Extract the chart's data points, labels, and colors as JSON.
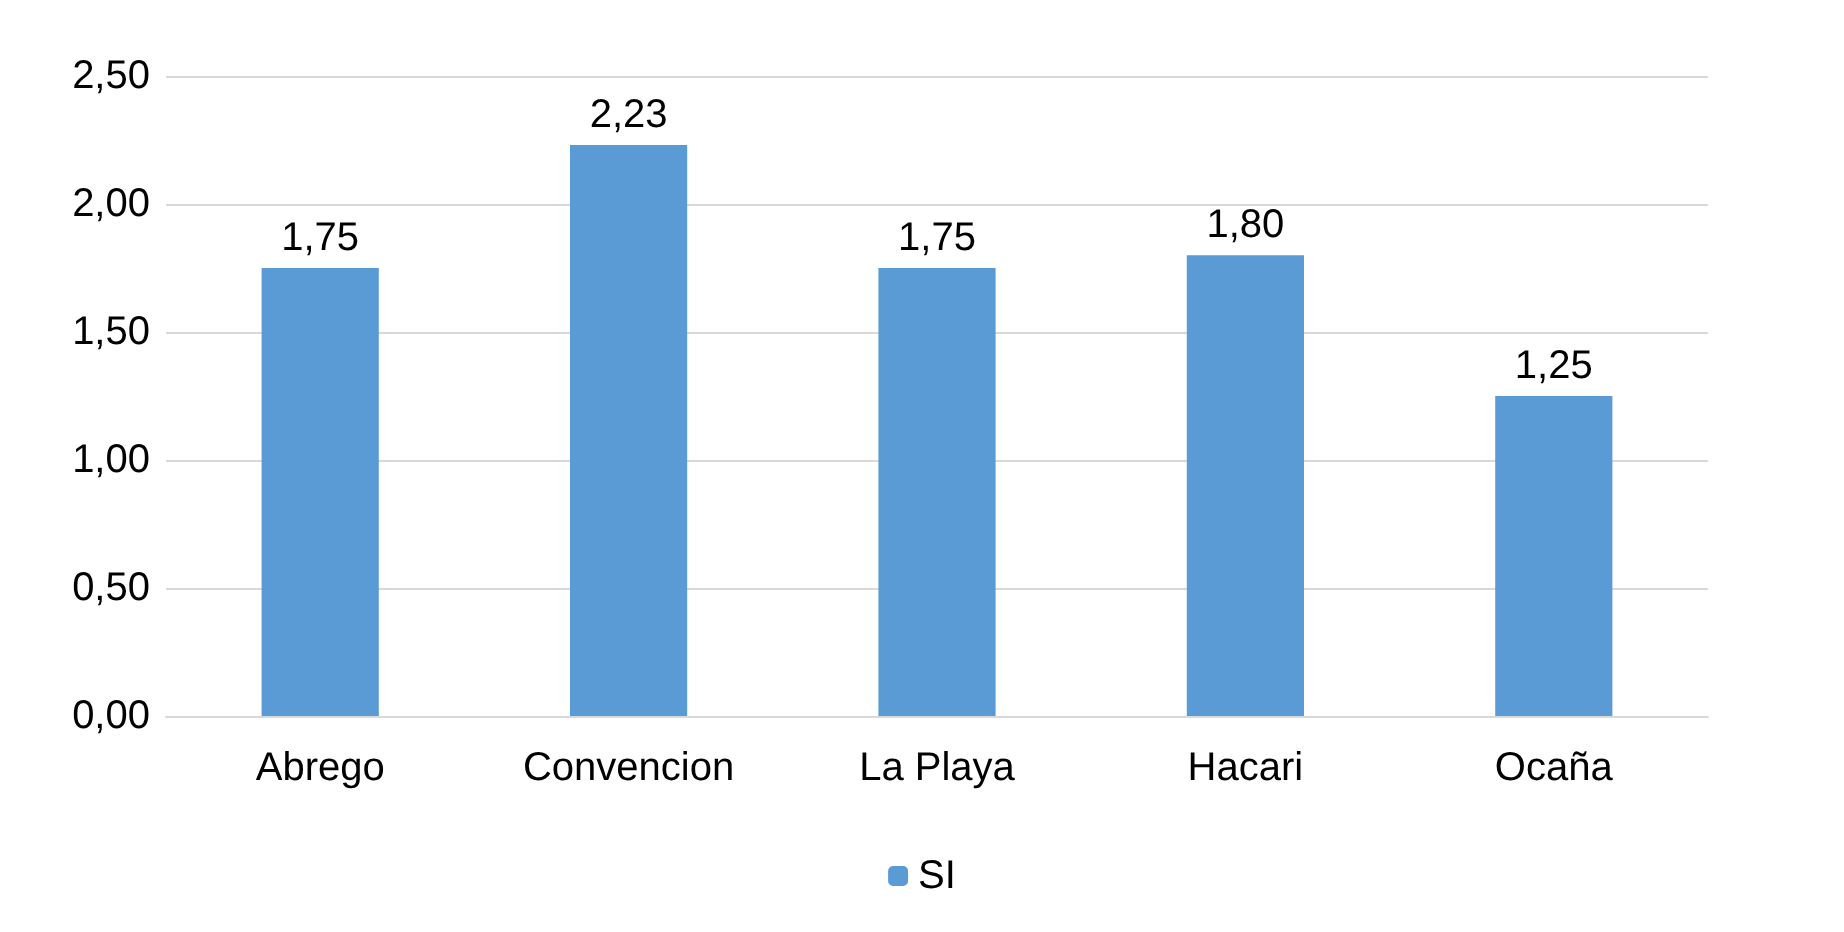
{
  "chart_data": {
    "type": "bar",
    "categories": [
      "Abrego",
      "Convencion",
      "La Playa",
      "Hacari",
      "Ocaña"
    ],
    "series": [
      {
        "name": "SI",
        "color": "#5b9bd5",
        "values": [
          1.75,
          2.23,
          1.75,
          1.8,
          1.25
        ]
      }
    ],
    "value_labels": [
      "1,75",
      "2,23",
      "1,75",
      "1,80",
      "1,25"
    ],
    "ylim": [
      0,
      2.5
    ],
    "yticks": [
      {
        "value": 0,
        "label": "0,00"
      },
      {
        "value": 0.5,
        "label": "0,50"
      },
      {
        "value": 1,
        "label": "1,00"
      },
      {
        "value": 1.5,
        "label": "1,50"
      },
      {
        "value": 2,
        "label": "2,00"
      },
      {
        "value": 2.5,
        "label": "2,50"
      }
    ],
    "grid": "y",
    "legend": "bottom"
  }
}
